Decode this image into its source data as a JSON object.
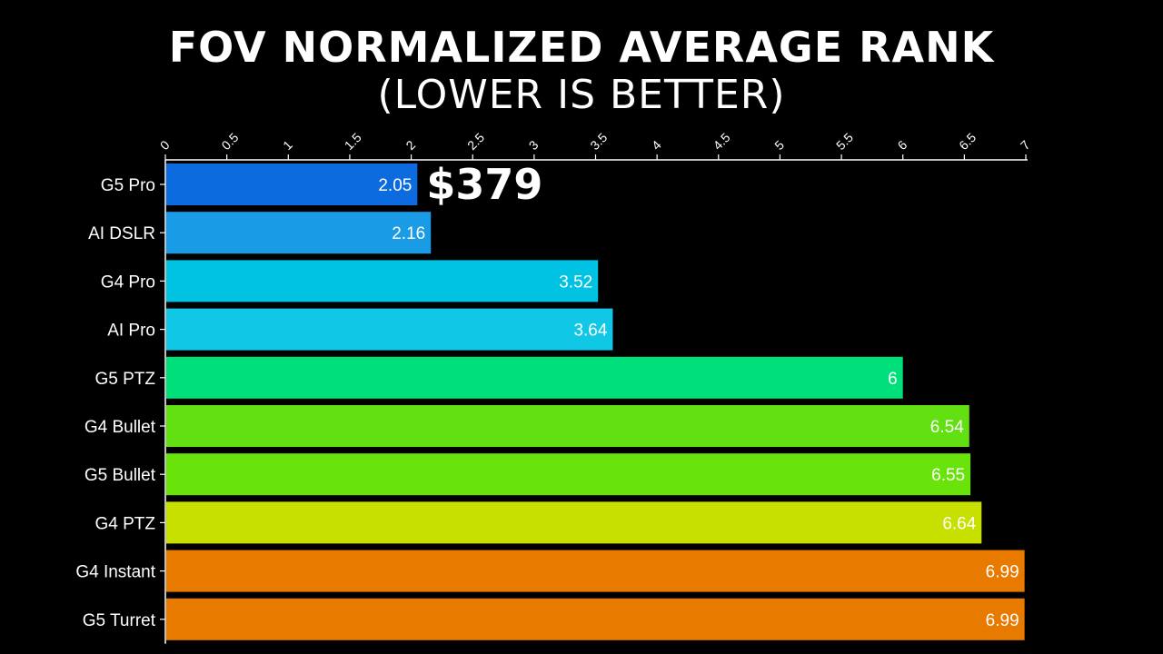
{
  "chart_data": {
    "type": "bar",
    "orientation": "horizontal",
    "title": "FOV NORMALIZED AVERAGE RANK",
    "subtitle": "(LOWER IS BETTER)",
    "categories": [
      "G5 Pro",
      "AI DSLR",
      "G4 Pro",
      "AI Pro",
      "G5 PTZ",
      "G4 Bullet",
      "G5 Bullet",
      "G4 PTZ",
      "G4 Instant",
      "G5 Turret"
    ],
    "values": [
      2.05,
      2.16,
      3.52,
      3.64,
      6,
      6.54,
      6.55,
      6.64,
      6.99,
      6.99
    ],
    "value_labels": [
      "2.05",
      "2.16",
      "3.52",
      "3.64",
      "6",
      "6.54",
      "6.55",
      "6.64",
      "6.99",
      "6.99"
    ],
    "bar_colors": [
      "#0d6be0",
      "#1a9be6",
      "#00c3e3",
      "#11c7e6",
      "#00e07a",
      "#62e012",
      "#68e40a",
      "#c8e000",
      "#e87a00",
      "#e87a00"
    ],
    "x_axis": {
      "range": [
        0,
        7
      ],
      "ticks": [
        "0",
        "0.5",
        "1",
        "1.5",
        "2",
        "2.5",
        "3",
        "3.5",
        "4",
        "4.5",
        "5",
        "5.5",
        "6",
        "6.5",
        "7"
      ],
      "position": "top"
    },
    "grid": false,
    "legend": "none",
    "annotations": [
      {
        "text": "$379",
        "category": "G5 Pro"
      }
    ]
  }
}
